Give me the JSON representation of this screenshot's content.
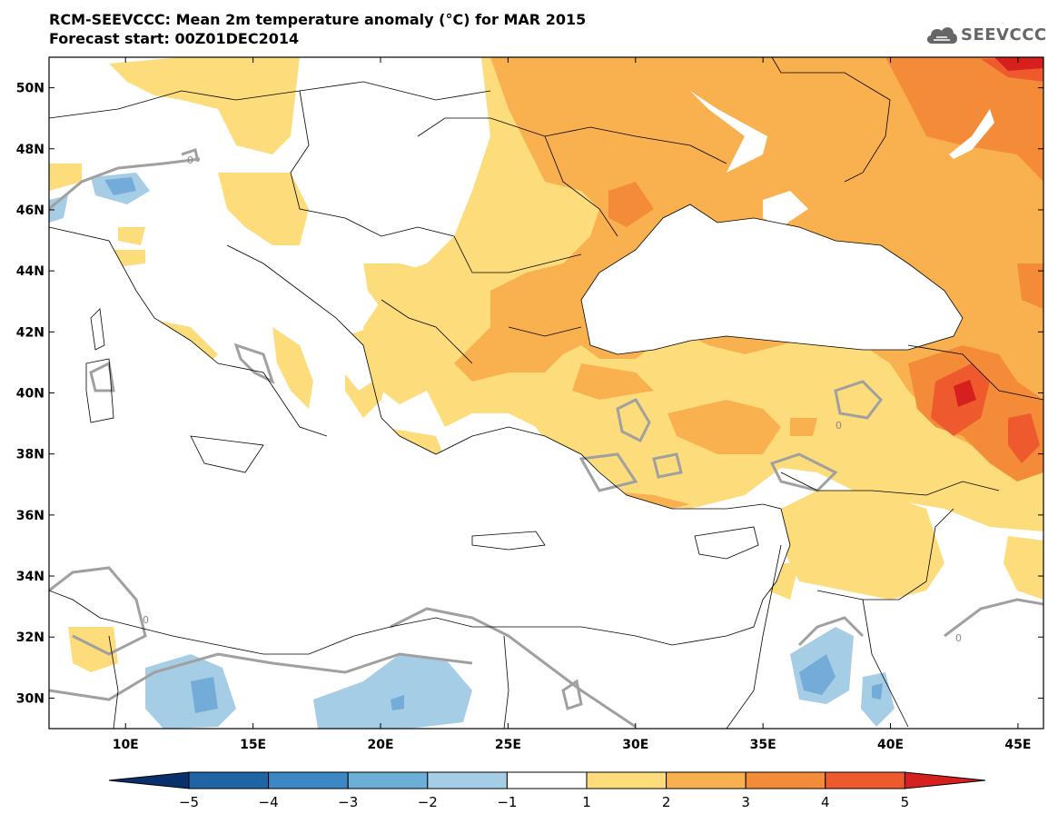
{
  "header": {
    "title": "RCM-SEEVCCC: Mean 2m temperature anomaly (°C) for MAR 2015",
    "subtitle": "Forecast start: 00Z01DEC2014",
    "logo_text": "SEEVCCC",
    "logo_icon": "cloud-icon"
  },
  "map": {
    "lon_range": [
      7,
      46
    ],
    "lat_range": [
      29,
      51
    ],
    "lat_labels": [
      "50N",
      "48N",
      "46N",
      "44N",
      "42N",
      "40N",
      "38N",
      "36N",
      "34N",
      "32N",
      "30N"
    ],
    "lon_labels": [
      "10E",
      "15E",
      "20E",
      "25E",
      "30E",
      "35E",
      "40E",
      "45E"
    ],
    "contour_label": "0",
    "colors": {
      "anom_1_2": "#fddc7b",
      "anom_2_3": "#f9b04f",
      "anom_3_4": "#f48b38",
      "anom_4_5": "#ee5a2e",
      "anom_gt_5": "#d6201e",
      "anom_m1_m2": "#a6cde6",
      "anom_m2_m3": "#73acd8"
    }
  },
  "colorbar": {
    "ticks": [
      "−5",
      "−4",
      "−3",
      "−2",
      "−1",
      "1",
      "2",
      "3",
      "4",
      "5"
    ],
    "colors": [
      "#08306b",
      "#1f64a5",
      "#3c88c5",
      "#6baed6",
      "#a6cde6",
      "#ffffff",
      "#fddc7b",
      "#f9b04f",
      "#f48b38",
      "#ee5a2e",
      "#d6201e"
    ]
  }
}
